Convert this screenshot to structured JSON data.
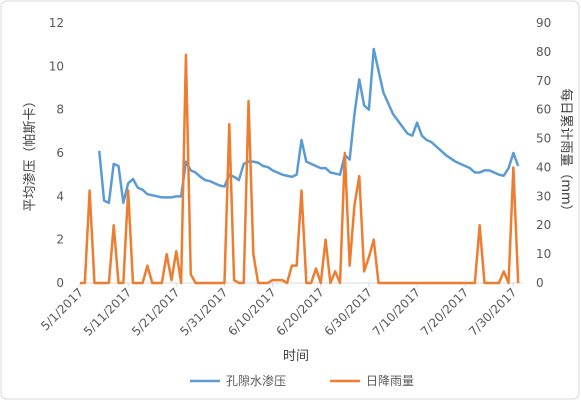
{
  "chart_data": {
    "type": "line",
    "x_label": "时间",
    "y_label": "平均渗压（帕斯卡）",
    "y2_label": "每日累计雨量（mm）",
    "x": [
      "5/1/2017",
      "5/2/2017",
      "5/3/2017",
      "5/4/2017",
      "5/5/2017",
      "5/6/2017",
      "5/7/2017",
      "5/8/2017",
      "5/9/2017",
      "5/10/2017",
      "5/11/2017",
      "5/12/2017",
      "5/13/2017",
      "5/14/2017",
      "5/15/2017",
      "5/16/2017",
      "5/17/2017",
      "5/18/2017",
      "5/19/2017",
      "5/20/2017",
      "5/21/2017",
      "5/22/2017",
      "5/23/2017",
      "5/24/2017",
      "5/25/2017",
      "5/26/2017",
      "5/27/2017",
      "5/28/2017",
      "5/29/2017",
      "5/30/2017",
      "5/31/2017",
      "6/1/2017",
      "6/2/2017",
      "6/3/2017",
      "6/4/2017",
      "6/5/2017",
      "6/6/2017",
      "6/7/2017",
      "6/8/2017",
      "6/9/2017",
      "6/10/2017",
      "6/11/2017",
      "6/12/2017",
      "6/13/2017",
      "6/14/2017",
      "6/15/2017",
      "6/16/2017",
      "6/17/2017",
      "6/18/2017",
      "6/19/2017",
      "6/20/2017",
      "6/21/2017",
      "6/22/2017",
      "6/23/2017",
      "6/24/2017",
      "6/25/2017",
      "6/26/2017",
      "6/27/2017",
      "6/28/2017",
      "6/29/2017",
      "6/30/2017",
      "7/1/2017",
      "7/2/2017",
      "7/3/2017",
      "7/4/2017",
      "7/5/2017",
      "7/6/2017",
      "7/7/2017",
      "7/8/2017",
      "7/9/2017",
      "7/10/2017",
      "7/11/2017",
      "7/12/2017",
      "7/13/2017",
      "7/14/2017",
      "7/15/2017",
      "7/16/2017",
      "7/17/2017",
      "7/18/2017",
      "7/19/2017",
      "7/20/2017",
      "7/21/2017",
      "7/22/2017",
      "7/23/2017",
      "7/24/2017",
      "7/25/2017",
      "7/26/2017",
      "7/27/2017",
      "7/28/2017",
      "7/29/2017",
      "7/30/2017",
      "7/31/2017"
    ],
    "series": [
      {
        "name": "孔隙水渗压",
        "color": "#5b9bd5",
        "values": [
          null,
          null,
          null,
          null,
          6.1,
          3.8,
          3.7,
          5.5,
          5.4,
          3.7,
          4.6,
          4.8,
          4.4,
          4.3,
          4.1,
          4.05,
          4.0,
          3.95,
          3.95,
          3.95,
          4.0,
          4.0,
          5.6,
          5.2,
          5.1,
          4.9,
          4.75,
          4.7,
          4.6,
          4.5,
          4.45,
          5.0,
          4.9,
          4.75,
          5.5,
          5.6,
          5.6,
          5.55,
          5.4,
          5.35,
          5.2,
          5.1,
          5.0,
          4.95,
          4.9,
          5.0,
          6.6,
          5.6,
          5.5,
          5.4,
          5.3,
          5.3,
          5.1,
          5.05,
          5.0,
          5.9,
          5.7,
          7.8,
          9.4,
          8.2,
          8.0,
          10.8,
          9.8,
          8.8,
          8.3,
          7.8,
          7.5,
          7.2,
          6.9,
          6.8,
          7.4,
          6.8,
          6.6,
          6.5,
          6.3,
          6.1,
          5.9,
          5.75,
          5.6,
          5.5,
          5.4,
          5.3,
          5.1,
          5.1,
          5.2,
          5.2,
          5.1,
          5.0,
          4.95,
          5.3,
          6.0,
          5.4
        ]
      },
      {
        "name": "日降雨量",
        "color": "#ed7d31",
        "axis": "y2",
        "values": [
          0,
          0,
          32,
          0,
          0,
          0,
          0,
          20,
          0,
          0,
          32,
          0,
          0,
          0,
          6,
          0,
          0,
          0,
          10,
          1,
          11,
          0,
          79,
          3,
          0,
          0,
          0,
          0,
          0,
          0,
          0,
          55,
          1,
          0,
          0,
          63,
          10,
          0,
          0,
          0,
          1,
          1,
          1,
          0,
          6,
          6,
          32,
          0,
          0,
          5,
          0,
          15,
          0,
          4,
          0,
          45,
          6,
          27,
          37,
          4,
          9,
          15,
          0,
          0,
          0,
          0,
          0,
          0,
          0,
          0,
          0,
          0,
          0,
          0,
          0,
          0,
          0,
          0,
          0,
          0,
          0,
          0,
          0,
          20,
          0,
          0,
          0,
          0,
          4,
          0,
          40,
          0
        ]
      }
    ],
    "xlim": [
      "5/1/2017",
      "8/1/2017"
    ],
    "xticks": [
      "5/1/2017",
      "5/11/2017",
      "5/21/2017",
      "5/31/2017",
      "6/10/2017",
      "6/20/2017",
      "6/30/2017",
      "7/10/2017",
      "7/20/2017",
      "7/30/2017"
    ],
    "ylim": [
      0,
      12
    ],
    "yticks": [
      0,
      2,
      4,
      6,
      8,
      10,
      12
    ],
    "y2lim": [
      0,
      90
    ],
    "y2ticks": [
      0,
      10,
      20,
      30,
      40,
      50,
      60,
      70,
      80,
      90
    ],
    "grid": false,
    "legend": "bottom"
  }
}
